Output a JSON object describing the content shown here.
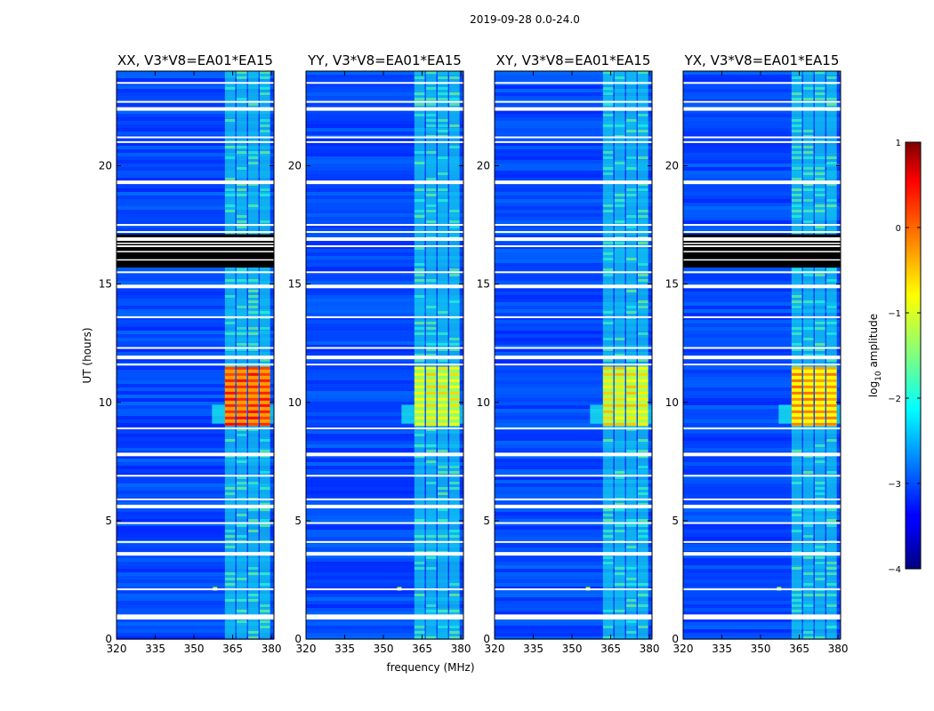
{
  "chart_data": {
    "type": "heatmap",
    "suptitle": "2019-09-28 0.0-24.0",
    "xlabel": "frequency (MHz)",
    "ylabel": "UT (hours)",
    "xlim": [
      320,
      381
    ],
    "ylim": [
      0,
      24
    ],
    "xticks": [
      "320",
      "335",
      "350",
      "365",
      "380"
    ],
    "yticks": [
      "0",
      "5",
      "10",
      "15",
      "20"
    ],
    "panels": [
      {
        "title": "XX, V3*V8=EA01*EA15",
        "strong_block_log10": 0.0,
        "black_block": true,
        "spot_freq": 358
      },
      {
        "title": "YY, V3*V8=EA01*EA15",
        "strong_block_log10": -1.0,
        "black_block": false,
        "spot_freq": 356
      },
      {
        "title": "XY, V3*V8=EA01*EA15",
        "strong_block_log10": -0.9,
        "black_block": false,
        "spot_freq": 356
      },
      {
        "title": "YX, V3*V8=EA01*EA15",
        "strong_block_log10": -0.5,
        "black_block": true,
        "spot_freq": 357
      }
    ],
    "colorbar": {
      "label": "log10 amplitude",
      "label_main": "log",
      "label_sub": "10",
      "label_rest": " amplitude",
      "ticks": [
        "1",
        "0",
        "−1",
        "−2",
        "−3",
        "−4"
      ],
      "range": [
        -4,
        1
      ],
      "colormap": "jet"
    },
    "features": {
      "background_log10": -3.0,
      "rfi_band_mhz": [
        362,
        381
      ],
      "rfi_channels_mhz": [
        [
          362,
          366
        ],
        [
          366.5,
          370.5
        ],
        [
          371,
          375
        ],
        [
          375.5,
          379.5
        ]
      ],
      "rfi_band_log10": -2.0,
      "strong_block_hours": [
        9.0,
        11.5
      ],
      "gap_hours": [
        0.9,
        1.0,
        2.1,
        3.6,
        4.1,
        4.9,
        5.6,
        5.9,
        6.9,
        7.8,
        8.9,
        11.6,
        11.9,
        12.3,
        13.6,
        14.9,
        15.5,
        16.6,
        16.9,
        17.2,
        17.5,
        19.3,
        21.0,
        21.2,
        22.4,
        22.7,
        23.5
      ],
      "black_block_hours": [
        15.7,
        17.1
      ]
    }
  }
}
